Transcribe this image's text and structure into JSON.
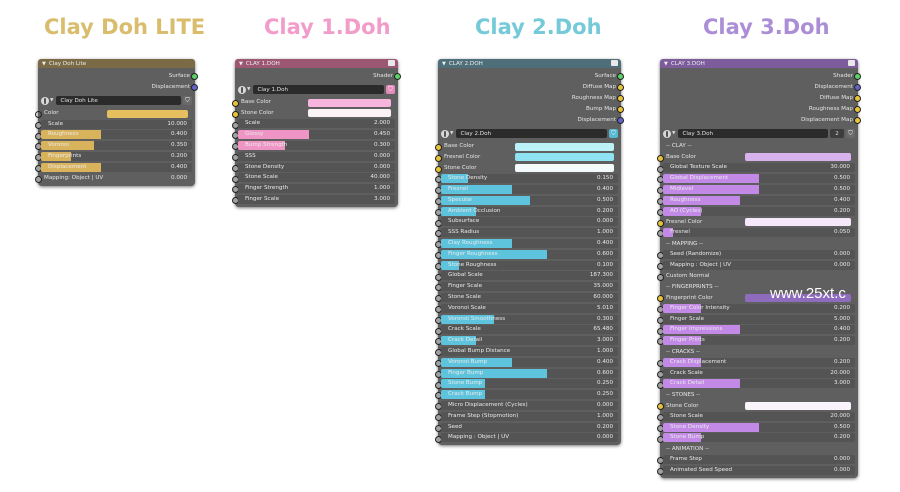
{
  "titles": {
    "lite": "Clay Doh LITE",
    "c1": "Clay 1.Doh",
    "c2": "Clay 2.Doh",
    "c3": "Clay 3.Doh"
  },
  "colors": {
    "title_lite": "#d9bd6d",
    "title_c1": "#f29cca",
    "title_c2": "#75cad9",
    "title_c3": "#ab8ed6",
    "header_lite": "#7a6a45",
    "header_c1": "#9c5873",
    "header_c2": "#4e6f7a",
    "header_c3": "#7d5c9c",
    "slider_lite": "#d9b25c",
    "slider_c1": "#ee95c6",
    "slider_c2": "#5ec3dc",
    "slider_c3": "#c28ae6",
    "shader_socket": "#5cd168",
    "color_socket": "#e8c33a",
    "float_socket": "#a1a1a1",
    "vector_socket": "#6363c7"
  },
  "watermark": "www.25xt.c",
  "node_lite": {
    "header": "Clay Doh Lite",
    "outputs": [
      "Surface",
      "Displacement"
    ],
    "group_name": "Clay Doh Lite",
    "color_label": "Color",
    "color_swatch": "#e6bf5e",
    "rows": [
      {
        "kind": "slider",
        "label": "Scale",
        "value": "10.000",
        "fill": 0.0
      },
      {
        "kind": "slider",
        "label": "Roughness",
        "value": "0.400",
        "fill": 0.4
      },
      {
        "kind": "slider",
        "label": "Voronoi",
        "value": "0.350",
        "fill": 0.35
      },
      {
        "kind": "slider",
        "label": "Fingerprints",
        "value": "0.200",
        "fill": 0.2
      },
      {
        "kind": "slider",
        "label": "Displacement",
        "value": "0.400",
        "fill": 0.4
      },
      {
        "kind": "plain",
        "label": "Mapping: Object | UV",
        "value": "0.000",
        "fill": 0
      }
    ]
  },
  "node_c1": {
    "header": "CLAY 1.DOH",
    "outputs": [
      "Shader"
    ],
    "group_name": "Clay 1.Doh",
    "rows": [
      {
        "kind": "color",
        "label": "Base Color",
        "swatch": "#f7b4dc"
      },
      {
        "kind": "color",
        "label": "Stone Color",
        "swatch": "#fbf2f6"
      },
      {
        "kind": "slider",
        "label": "Scale",
        "value": "2.000",
        "fill": 0.0
      },
      {
        "kind": "slider",
        "label": "Glossy",
        "value": "0.450",
        "fill": 0.45
      },
      {
        "kind": "slider",
        "label": "Bump Strength",
        "value": "0.300",
        "fill": 0.3
      },
      {
        "kind": "slider",
        "label": "SSS",
        "value": "0.000",
        "fill": 0.0
      },
      {
        "kind": "slider",
        "label": "Stone Density",
        "value": "0.000",
        "fill": 0.0
      },
      {
        "kind": "slider",
        "label": "Stone Scale",
        "value": "40.000",
        "fill": 0.0
      },
      {
        "kind": "slider",
        "label": "Finger Strength",
        "value": "1.000",
        "fill": 0.0
      },
      {
        "kind": "slider",
        "label": "Finger Scale",
        "value": "3.000",
        "fill": 0.0
      }
    ]
  },
  "node_c2": {
    "header": "CLAY 2.DOH",
    "outputs": [
      "Surface",
      "Diffuse Map",
      "Roughness Map",
      "Bump Map",
      "Displacement"
    ],
    "group_name": "Clay 2.Doh",
    "rows": [
      {
        "kind": "color",
        "label": "Base Color",
        "swatch": "#bdf1f8"
      },
      {
        "kind": "color",
        "label": "Fresnel Color",
        "swatch": "#8ee2f2"
      },
      {
        "kind": "color",
        "label": "Stone Color",
        "swatch": "#f4fbfd"
      },
      {
        "kind": "slider",
        "label": "Stone Density",
        "value": "0.150",
        "fill": 0.15
      },
      {
        "kind": "slider",
        "label": "Fresnel",
        "value": "0.400",
        "fill": 0.4
      },
      {
        "kind": "slider",
        "label": "Specular",
        "value": "0.500",
        "fill": 0.5
      },
      {
        "kind": "slider",
        "label": "Ambient Occlusion",
        "value": "0.200",
        "fill": 0.2
      },
      {
        "kind": "slider",
        "label": "Subsurface",
        "value": "0.000",
        "fill": 0.0
      },
      {
        "kind": "slider",
        "label": "SSS Radius",
        "value": "1.000",
        "fill": 0.0
      },
      {
        "kind": "slider",
        "label": "Clay Roughness",
        "value": "0.400",
        "fill": 0.4
      },
      {
        "kind": "slider",
        "label": "Finger Roughness",
        "value": "0.600",
        "fill": 0.6
      },
      {
        "kind": "slider",
        "label": "Stone Roughness",
        "value": "0.100",
        "fill": 0.1
      },
      {
        "kind": "slider",
        "label": "Global Scale",
        "value": "187.300",
        "fill": 0.0
      },
      {
        "kind": "slider",
        "label": "Finger Scale",
        "value": "35.000",
        "fill": 0.0
      },
      {
        "kind": "slider",
        "label": "Stone Scale",
        "value": "60.000",
        "fill": 0.0
      },
      {
        "kind": "slider",
        "label": "Voronoi Scale",
        "value": "5.010",
        "fill": 0.0
      },
      {
        "kind": "slider",
        "label": "Voronoi Smoothness",
        "value": "0.300",
        "fill": 0.3
      },
      {
        "kind": "slider",
        "label": "Crack Scale",
        "value": "65.480",
        "fill": 0.0
      },
      {
        "kind": "slider",
        "label": "Crack Detail",
        "value": "3.000",
        "fill": 0.2
      },
      {
        "kind": "slider",
        "label": "Global Bump Distance",
        "value": "1.000",
        "fill": 0.0
      },
      {
        "kind": "slider",
        "label": "Voronoi Bump",
        "value": "0.400",
        "fill": 0.4
      },
      {
        "kind": "slider",
        "label": "Finger Bump",
        "value": "0.600",
        "fill": 0.6
      },
      {
        "kind": "slider",
        "label": "Stone Bump",
        "value": "0.250",
        "fill": 0.25
      },
      {
        "kind": "slider",
        "label": "Crack Bump",
        "value": "0.250",
        "fill": 0.25
      },
      {
        "kind": "slider",
        "label": "Micro Displacement (Cycles)",
        "value": "0.000",
        "fill": 0.0
      },
      {
        "kind": "slider",
        "label": "Frame Step (Stopmotion)",
        "value": "1.000",
        "fill": 0.0
      },
      {
        "kind": "slider",
        "label": "Seed",
        "value": "0.200",
        "fill": 0.0
      },
      {
        "kind": "slider",
        "label": "Mapping : Object | UV",
        "value": "0.000",
        "fill": 0.0
      }
    ]
  },
  "node_c3": {
    "header": "CLAY 3.DOH",
    "outputs": [
      "Shader",
      "Displacement",
      "Diffuse Map",
      "Roughness Map",
      "Displacement Map"
    ],
    "group_name": "Clay 3.Doh",
    "users": "2",
    "rows": [
      {
        "kind": "plain",
        "label": "-- CLAY --"
      },
      {
        "kind": "color",
        "label": "Base Color",
        "swatch": "#d8b2ec"
      },
      {
        "kind": "slider",
        "label": "Global Texture Scale",
        "value": "30.000",
        "fill": 0.0
      },
      {
        "kind": "slider",
        "label": "Global Displacement",
        "value": "0.500",
        "fill": 0.5
      },
      {
        "kind": "slider",
        "label": "Midlevel",
        "value": "0.500",
        "fill": 0.5
      },
      {
        "kind": "slider",
        "label": "Roughness",
        "value": "0.400",
        "fill": 0.4
      },
      {
        "kind": "slider",
        "label": "AO (Cycles)",
        "value": "0.200",
        "fill": 0.2
      },
      {
        "kind": "color",
        "label": "Fresnel Color",
        "swatch": "#f5e8fa"
      },
      {
        "kind": "slider",
        "label": "Fresnel",
        "value": "0.050",
        "fill": 0.05
      },
      {
        "kind": "plain",
        "label": "-- MAPPING --"
      },
      {
        "kind": "slider",
        "label": "Seed (Randomize)",
        "value": "0.000",
        "fill": 0.0
      },
      {
        "kind": "slider",
        "label": "Mapping : Object | UV",
        "value": "0.000",
        "fill": 0.0
      },
      {
        "kind": "plain",
        "label": "Custom Normal"
      },
      {
        "kind": "plain",
        "label": "-- FINGERPRINTS --"
      },
      {
        "kind": "color",
        "label": "Fingerprint Color",
        "swatch": "#8f6bbd"
      },
      {
        "kind": "slider",
        "label": "Finger Color Intensity",
        "value": "0.200",
        "fill": 0.2
      },
      {
        "kind": "slider",
        "label": "Finger Scale",
        "value": "5.000",
        "fill": 0.0
      },
      {
        "kind": "slider",
        "label": "Finger Impressions",
        "value": "0.400",
        "fill": 0.4
      },
      {
        "kind": "slider",
        "label": "Finger Prints",
        "value": "0.200",
        "fill": 0.2
      },
      {
        "kind": "plain",
        "label": "-- CRACKS --"
      },
      {
        "kind": "slider",
        "label": "Crack Displacement",
        "value": "0.200",
        "fill": 0.2
      },
      {
        "kind": "slider",
        "label": "Crack Scale",
        "value": "20.000",
        "fill": 0.0
      },
      {
        "kind": "slider",
        "label": "Crack Detail",
        "value": "3.000",
        "fill": 0.4
      },
      {
        "kind": "plain",
        "label": "-- STONES --"
      },
      {
        "kind": "color",
        "label": "Stone Color",
        "swatch": "#f9f4fb"
      },
      {
        "kind": "slider",
        "label": "Stone Scale",
        "value": "20.000",
        "fill": 0.0
      },
      {
        "kind": "slider",
        "label": "Stone Density",
        "value": "0.500",
        "fill": 0.5
      },
      {
        "kind": "slider",
        "label": "Stone Bump",
        "value": "0.200",
        "fill": 0.2
      },
      {
        "kind": "plain",
        "label": "-- ANIMATION --"
      },
      {
        "kind": "slider",
        "label": "Frame Step",
        "value": "0.000",
        "fill": 0.0
      },
      {
        "kind": "slider",
        "label": "Animated Seed Speed",
        "value": "0.000",
        "fill": 0.0
      }
    ]
  }
}
